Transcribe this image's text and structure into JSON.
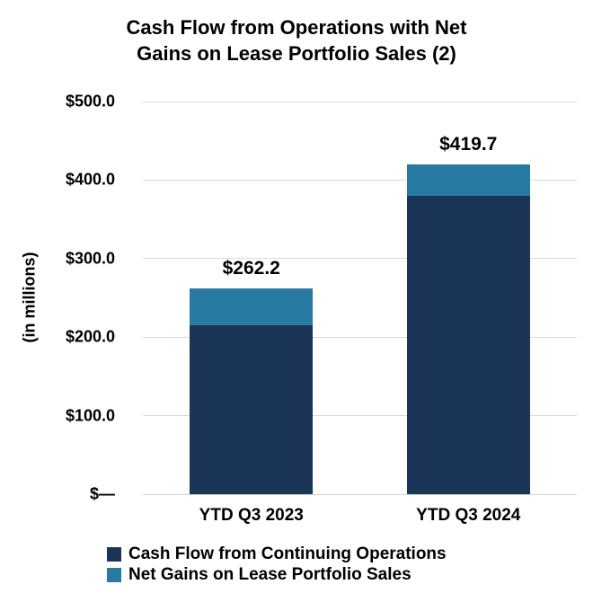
{
  "title": {
    "line1": "Cash Flow from Operations with Net",
    "line2": "Gains on Lease Portfolio Sales (2)"
  },
  "chart_data": {
    "type": "bar",
    "stacked": true,
    "title": "Cash Flow from Operations with Net Gains on Lease Portfolio Sales (2)",
    "categories": [
      "YTD Q3 2023",
      "YTD Q3 2024"
    ],
    "series": [
      {
        "name": "Cash Flow from Continuing Operations",
        "color": "#1B3559",
        "values": [
          215.4,
          380.0
        ]
      },
      {
        "name": "Net Gains on Lease Portfolio Sales",
        "color": "#287AA3",
        "values": [
          46.8,
          39.7
        ]
      }
    ],
    "totals": [
      262.2,
      419.7
    ],
    "total_labels": [
      "$262.2",
      "$419.7"
    ],
    "xlabel": "",
    "ylabel": "(in millions)",
    "ylim": [
      0,
      500
    ],
    "yticks": [
      {
        "value": 500,
        "label": "$500.0"
      },
      {
        "value": 400,
        "label": "$400.0"
      },
      {
        "value": 300,
        "label": "$300.0"
      },
      {
        "value": 200,
        "label": "$200.0"
      },
      {
        "value": 100,
        "label": "$100.0"
      },
      {
        "value": 0,
        "label": "$—"
      }
    ],
    "grid": true,
    "legend_position": "bottom-left",
    "colors": {
      "gridline": "#DBDBDB",
      "axis_line": "#D4D4D4",
      "text": "#000000",
      "background": "#FFFFFF"
    }
  }
}
